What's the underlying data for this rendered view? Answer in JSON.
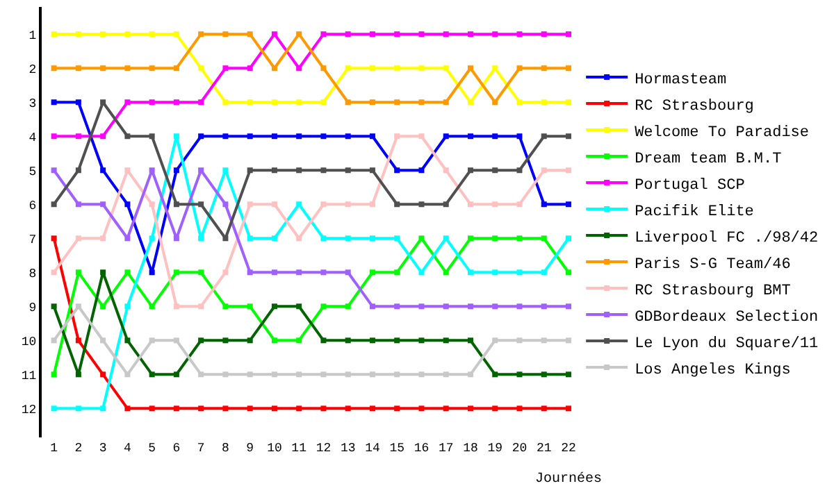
{
  "chart_data": {
    "type": "line",
    "xlabel": "Journées",
    "x": [
      1,
      2,
      3,
      4,
      5,
      6,
      7,
      8,
      9,
      10,
      11,
      12,
      13,
      14,
      15,
      16,
      17,
      18,
      19,
      20,
      21,
      22
    ],
    "xlim": [
      0.5,
      22
    ],
    "xticks": [
      1,
      2,
      3,
      4,
      5,
      6,
      7,
      8,
      9,
      10,
      11,
      12,
      13,
      14,
      15,
      16,
      17,
      18,
      19,
      20,
      21,
      22
    ],
    "ylim": [
      12.85,
      0.2
    ],
    "yticks": [
      1,
      2,
      3,
      4,
      5,
      6,
      7,
      8,
      9,
      10,
      11,
      12
    ],
    "legend": "right",
    "marker": "square",
    "line_style": "solid",
    "series": [
      {
        "name": "Hormasteam",
        "color": "#0000ff",
        "values": [
          3,
          3,
          5,
          6,
          8,
          5,
          4,
          4,
          4,
          4,
          4,
          4,
          4,
          4,
          5,
          5,
          4,
          4,
          4,
          4,
          6,
          6
        ]
      },
      {
        "name": "RC Strasbourg",
        "color": "#ff0000",
        "values": [
          7,
          10,
          11,
          12,
          12,
          12,
          12,
          12,
          12,
          12,
          12,
          12,
          12,
          12,
          12,
          12,
          12,
          12,
          12,
          12,
          12,
          12
        ]
      },
      {
        "name": "Welcome To Paradise",
        "color": "#ffff00",
        "values": [
          1,
          1,
          1,
          1,
          1,
          1,
          2,
          3,
          3,
          3,
          3,
          3,
          2,
          2,
          2,
          2,
          2,
          3,
          2,
          3,
          3,
          3
        ]
      },
      {
        "name": "Dream team B.M.T",
        "color": "#00ff00",
        "values": [
          11,
          8,
          9,
          8,
          9,
          8,
          8,
          9,
          9,
          10,
          10,
          9,
          9,
          8,
          8,
          7,
          8,
          7,
          7,
          7,
          7,
          8
        ]
      },
      {
        "name": "Portugal SCP",
        "color": "#ff00ff",
        "values": [
          4,
          4,
          4,
          3,
          3,
          3,
          3,
          2,
          2,
          1,
          2,
          1,
          1,
          1,
          1,
          1,
          1,
          1,
          1,
          1,
          1,
          1
        ]
      },
      {
        "name": "Pacifik Elite",
        "color": "#00ffff",
        "values": [
          12,
          12,
          12,
          9,
          7,
          4,
          7,
          5,
          7,
          7,
          6,
          7,
          7,
          7,
          7,
          8,
          7,
          8,
          8,
          8,
          8,
          7
        ]
      },
      {
        "name": "Liverpool FC ./98/42",
        "color": "#006400",
        "values": [
          9,
          11,
          8,
          10,
          11,
          11,
          10,
          10,
          10,
          9,
          9,
          10,
          10,
          10,
          10,
          10,
          10,
          10,
          11,
          11,
          11,
          11
        ]
      },
      {
        "name": "Paris S-G Team/46",
        "color": "#ff9900",
        "values": [
          2,
          2,
          2,
          2,
          2,
          2,
          1,
          1,
          1,
          2,
          1,
          2,
          3,
          3,
          3,
          3,
          3,
          2,
          3,
          2,
          2,
          2
        ]
      },
      {
        "name": "RC Strasbourg BMT",
        "color": "#ffc0c0",
        "values": [
          8,
          7,
          7,
          5,
          6,
          9,
          9,
          8,
          6,
          6,
          7,
          6,
          6,
          6,
          4,
          4,
          5,
          6,
          6,
          6,
          5,
          5
        ]
      },
      {
        "name": "GDBordeaux Selection",
        "color": "#a060ff",
        "values": [
          5,
          6,
          6,
          7,
          5,
          7,
          5,
          6,
          8,
          8,
          8,
          8,
          8,
          9,
          9,
          9,
          9,
          9,
          9,
          9,
          9,
          9
        ]
      },
      {
        "name": "Le Lyon du Square/11",
        "color": "#505050",
        "values": [
          6,
          5,
          3,
          4,
          4,
          6,
          6,
          7,
          5,
          5,
          5,
          5,
          5,
          5,
          6,
          6,
          6,
          5,
          5,
          5,
          4,
          4
        ]
      },
      {
        "name": "Los Angeles Kings",
        "color": "#c8c8c8",
        "values": [
          10,
          9,
          10,
          11,
          10,
          10,
          11,
          11,
          11,
          11,
          11,
          11,
          11,
          11,
          11,
          11,
          11,
          11,
          10,
          10,
          10,
          10
        ]
      }
    ]
  }
}
